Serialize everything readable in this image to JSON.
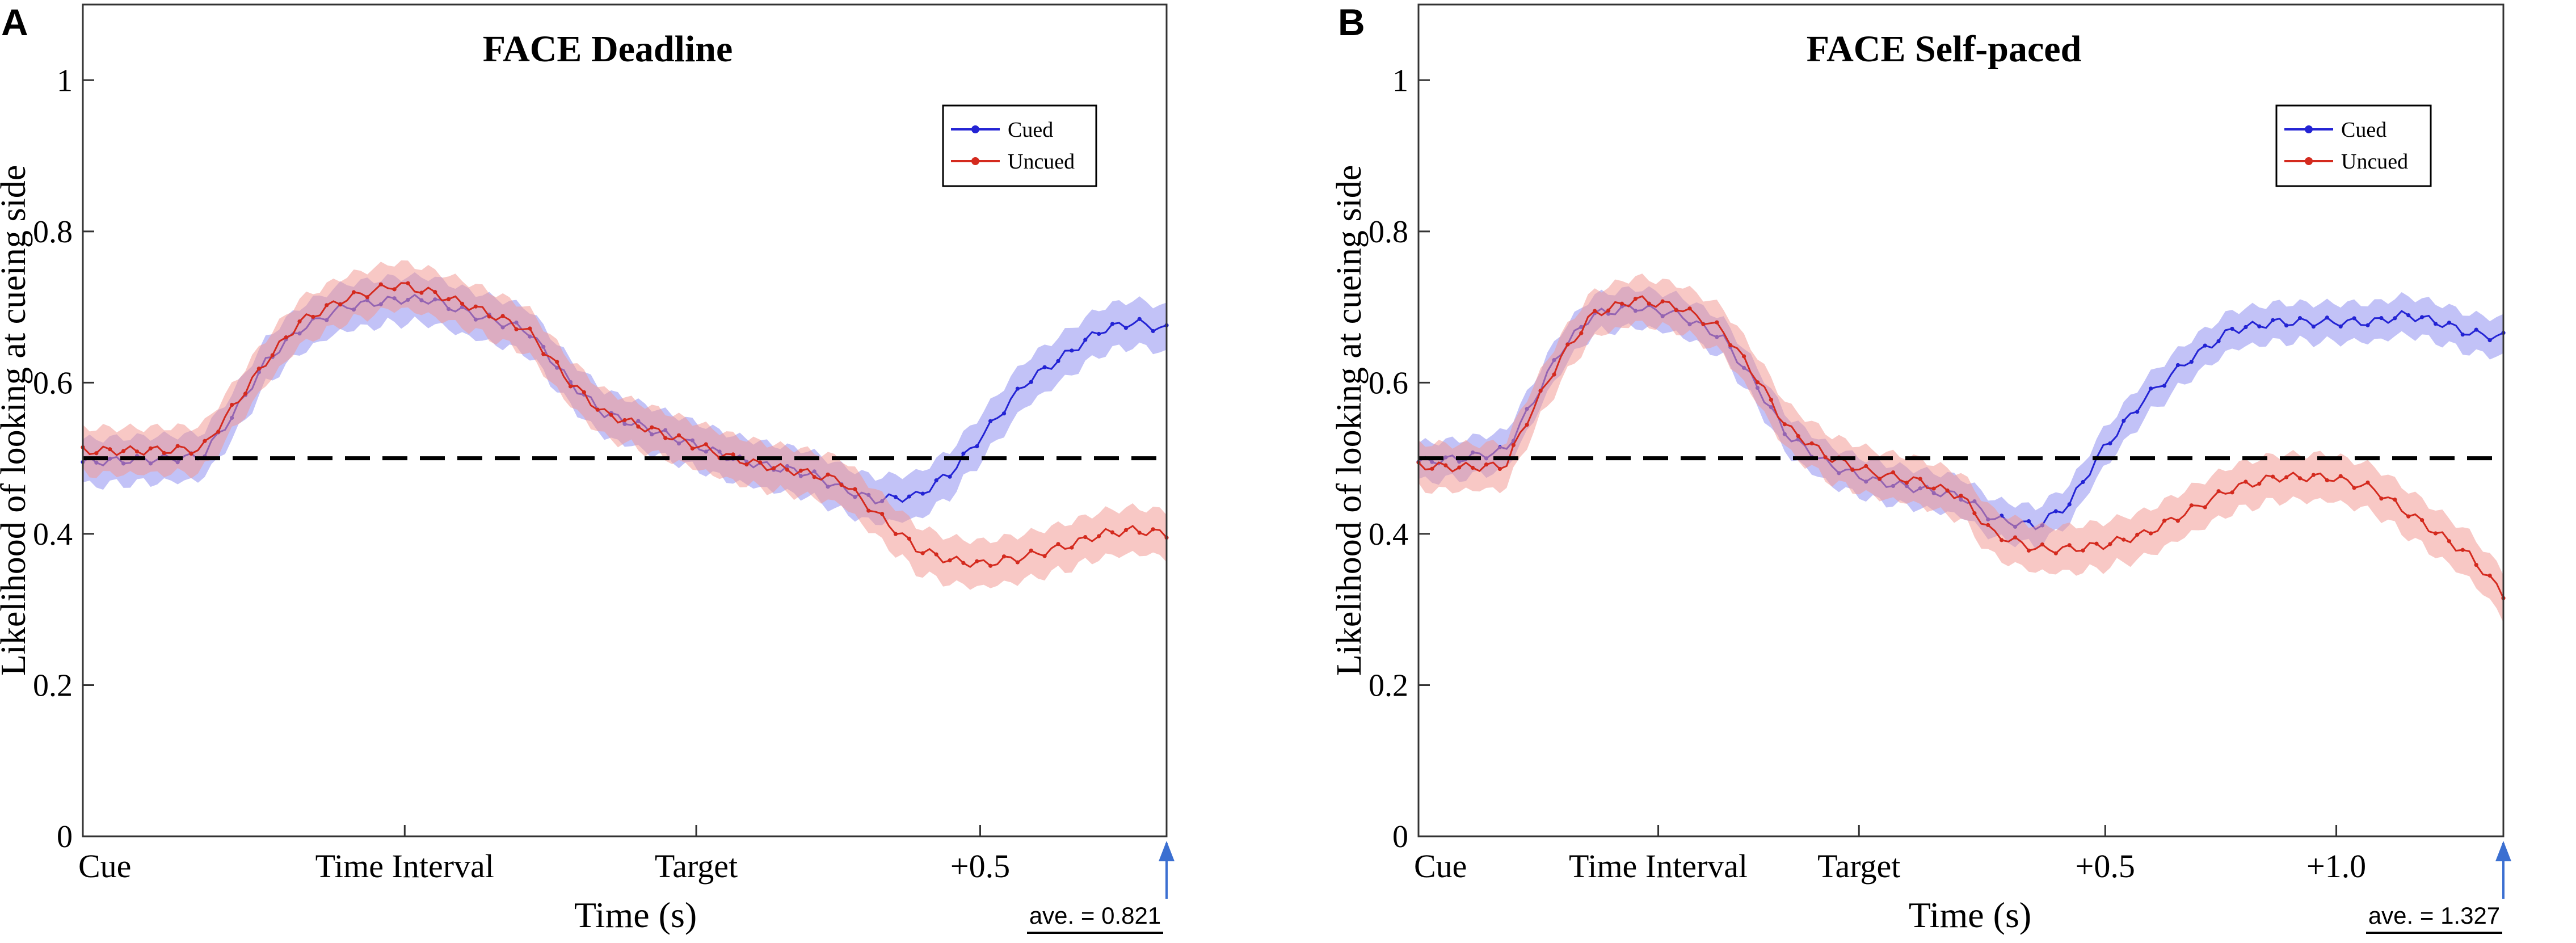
{
  "colors": {
    "cued": "#2323d4",
    "uncued": "#d42a1e",
    "cued_band": "#8f8ff0",
    "uncued_band": "#f39a96",
    "chance": "#000000",
    "arrow": "#3b6fd1"
  },
  "chart_data": [
    {
      "type": "line",
      "panel_label": "A",
      "title": "FACE Deadline",
      "xlabel": "Time (s)",
      "ylabel": "Likelihood of looking at cueing side",
      "ylim": [
        0,
        1.1
      ],
      "xlim": [
        0,
        100
      ],
      "yticks": [
        "0",
        "0.2",
        "0.4",
        "0.6",
        "0.8",
        "1"
      ],
      "ytick_values": [
        0,
        0.2,
        0.4,
        0.6,
        0.8,
        1.0
      ],
      "xtick_labels": [
        "Cue",
        "Time Interval",
        "Target",
        "+0.5"
      ],
      "xtick_values": [
        0,
        29.7,
        56.6,
        82.8
      ],
      "chance_level": 0.5,
      "legend": [
        "Cued",
        "Uncued"
      ],
      "legend_position": "top-right",
      "average_note": "ave. = 0.821",
      "series": [
        {
          "name": "Cued",
          "band": 0.03,
          "points": [
            [
              0,
              0.495
            ],
            [
              5,
              0.498
            ],
            [
              11,
              0.502
            ],
            [
              14,
              0.56
            ],
            [
              17,
              0.63
            ],
            [
              20,
              0.67
            ],
            [
              24,
              0.7
            ],
            [
              29,
              0.71
            ],
            [
              32,
              0.71
            ],
            [
              36,
              0.69
            ],
            [
              41,
              0.67
            ],
            [
              45,
              0.6
            ],
            [
              48,
              0.56
            ],
            [
              52,
              0.54
            ],
            [
              56,
              0.52
            ],
            [
              60,
              0.5
            ],
            [
              63,
              0.49
            ],
            [
              67,
              0.48
            ],
            [
              70,
              0.46
            ],
            [
              73,
              0.445
            ],
            [
              77,
              0.45
            ],
            [
              80,
              0.48
            ],
            [
              83,
              0.53
            ],
            [
              87,
              0.6
            ],
            [
              91,
              0.64
            ],
            [
              94,
              0.67
            ],
            [
              97,
              0.68
            ],
            [
              100,
              0.67
            ]
          ]
        },
        {
          "name": "Uncued",
          "band": 0.03,
          "points": [
            [
              0,
              0.51
            ],
            [
              5,
              0.51
            ],
            [
              11,
              0.512
            ],
            [
              14,
              0.57
            ],
            [
              17,
              0.63
            ],
            [
              20,
              0.68
            ],
            [
              24,
              0.71
            ],
            [
              29,
              0.73
            ],
            [
              32,
              0.72
            ],
            [
              36,
              0.7
            ],
            [
              41,
              0.67
            ],
            [
              45,
              0.6
            ],
            [
              48,
              0.56
            ],
            [
              52,
              0.54
            ],
            [
              56,
              0.52
            ],
            [
              60,
              0.5
            ],
            [
              63,
              0.49
            ],
            [
              67,
              0.48
            ],
            [
              70,
              0.47
            ],
            [
              73,
              0.43
            ],
            [
              77,
              0.38
            ],
            [
              80,
              0.365
            ],
            [
              83,
              0.36
            ],
            [
              87,
              0.37
            ],
            [
              91,
              0.385
            ],
            [
              94,
              0.4
            ],
            [
              97,
              0.405
            ],
            [
              100,
              0.4
            ]
          ]
        }
      ]
    },
    {
      "type": "line",
      "panel_label": "B",
      "title": "FACE Self-paced",
      "xlabel": "Time (s)",
      "ylabel": "Likelihood of looking at cueing side",
      "ylim": [
        0,
        1.1
      ],
      "xlim": [
        0,
        100
      ],
      "yticks": [
        "0",
        "0.2",
        "0.4",
        "0.6",
        "0.8",
        "1"
      ],
      "ytick_values": [
        0,
        0.2,
        0.4,
        0.6,
        0.8,
        1.0
      ],
      "xtick_labels": [
        "Cue",
        "Time Interval",
        "Target",
        "+0.5",
        "+1.0"
      ],
      "xtick_values": [
        0,
        22.1,
        40.6,
        63.3,
        84.6
      ],
      "chance_level": 0.5,
      "legend": [
        "Cued",
        "Uncued"
      ],
      "legend_position": "top-right",
      "average_note": "ave. = 1.327",
      "series": [
        {
          "name": "Cued",
          "band": 0.025,
          "points": [
            [
              0,
              0.495
            ],
            [
              4,
              0.5
            ],
            [
              8,
              0.51
            ],
            [
              10,
              0.56
            ],
            [
              13,
              0.64
            ],
            [
              16,
              0.69
            ],
            [
              20,
              0.7
            ],
            [
              24,
              0.69
            ],
            [
              28,
              0.66
            ],
            [
              31,
              0.6
            ],
            [
              34,
              0.53
            ],
            [
              38,
              0.49
            ],
            [
              42,
              0.47
            ],
            [
              46,
              0.46
            ],
            [
              50,
              0.45
            ],
            [
              53,
              0.42
            ],
            [
              57,
              0.41
            ],
            [
              60,
              0.44
            ],
            [
              63,
              0.51
            ],
            [
              67,
              0.58
            ],
            [
              71,
              0.63
            ],
            [
              75,
              0.67
            ],
            [
              79,
              0.68
            ],
            [
              84,
              0.68
            ],
            [
              88,
              0.68
            ],
            [
              91,
              0.69
            ],
            [
              94,
              0.68
            ],
            [
              97,
              0.665
            ],
            [
              100,
              0.66
            ]
          ]
        },
        {
          "name": "Uncued",
          "band": 0.03,
          "points": [
            [
              0,
              0.49
            ],
            [
              4,
              0.488
            ],
            [
              8,
              0.49
            ],
            [
              10,
              0.55
            ],
            [
              13,
              0.63
            ],
            [
              16,
              0.69
            ],
            [
              20,
              0.71
            ],
            [
              24,
              0.7
            ],
            [
              28,
              0.67
            ],
            [
              31,
              0.61
            ],
            [
              34,
              0.54
            ],
            [
              38,
              0.5
            ],
            [
              42,
              0.48
            ],
            [
              46,
              0.47
            ],
            [
              50,
              0.45
            ],
            [
              53,
              0.4
            ],
            [
              57,
              0.38
            ],
            [
              60,
              0.38
            ],
            [
              63,
              0.385
            ],
            [
              67,
              0.4
            ],
            [
              71,
              0.43
            ],
            [
              75,
              0.46
            ],
            [
              79,
              0.475
            ],
            [
              84,
              0.475
            ],
            [
              88,
              0.46
            ],
            [
              91,
              0.43
            ],
            [
              94,
              0.4
            ],
            [
              97,
              0.37
            ],
            [
              100,
              0.32
            ]
          ]
        }
      ]
    }
  ]
}
